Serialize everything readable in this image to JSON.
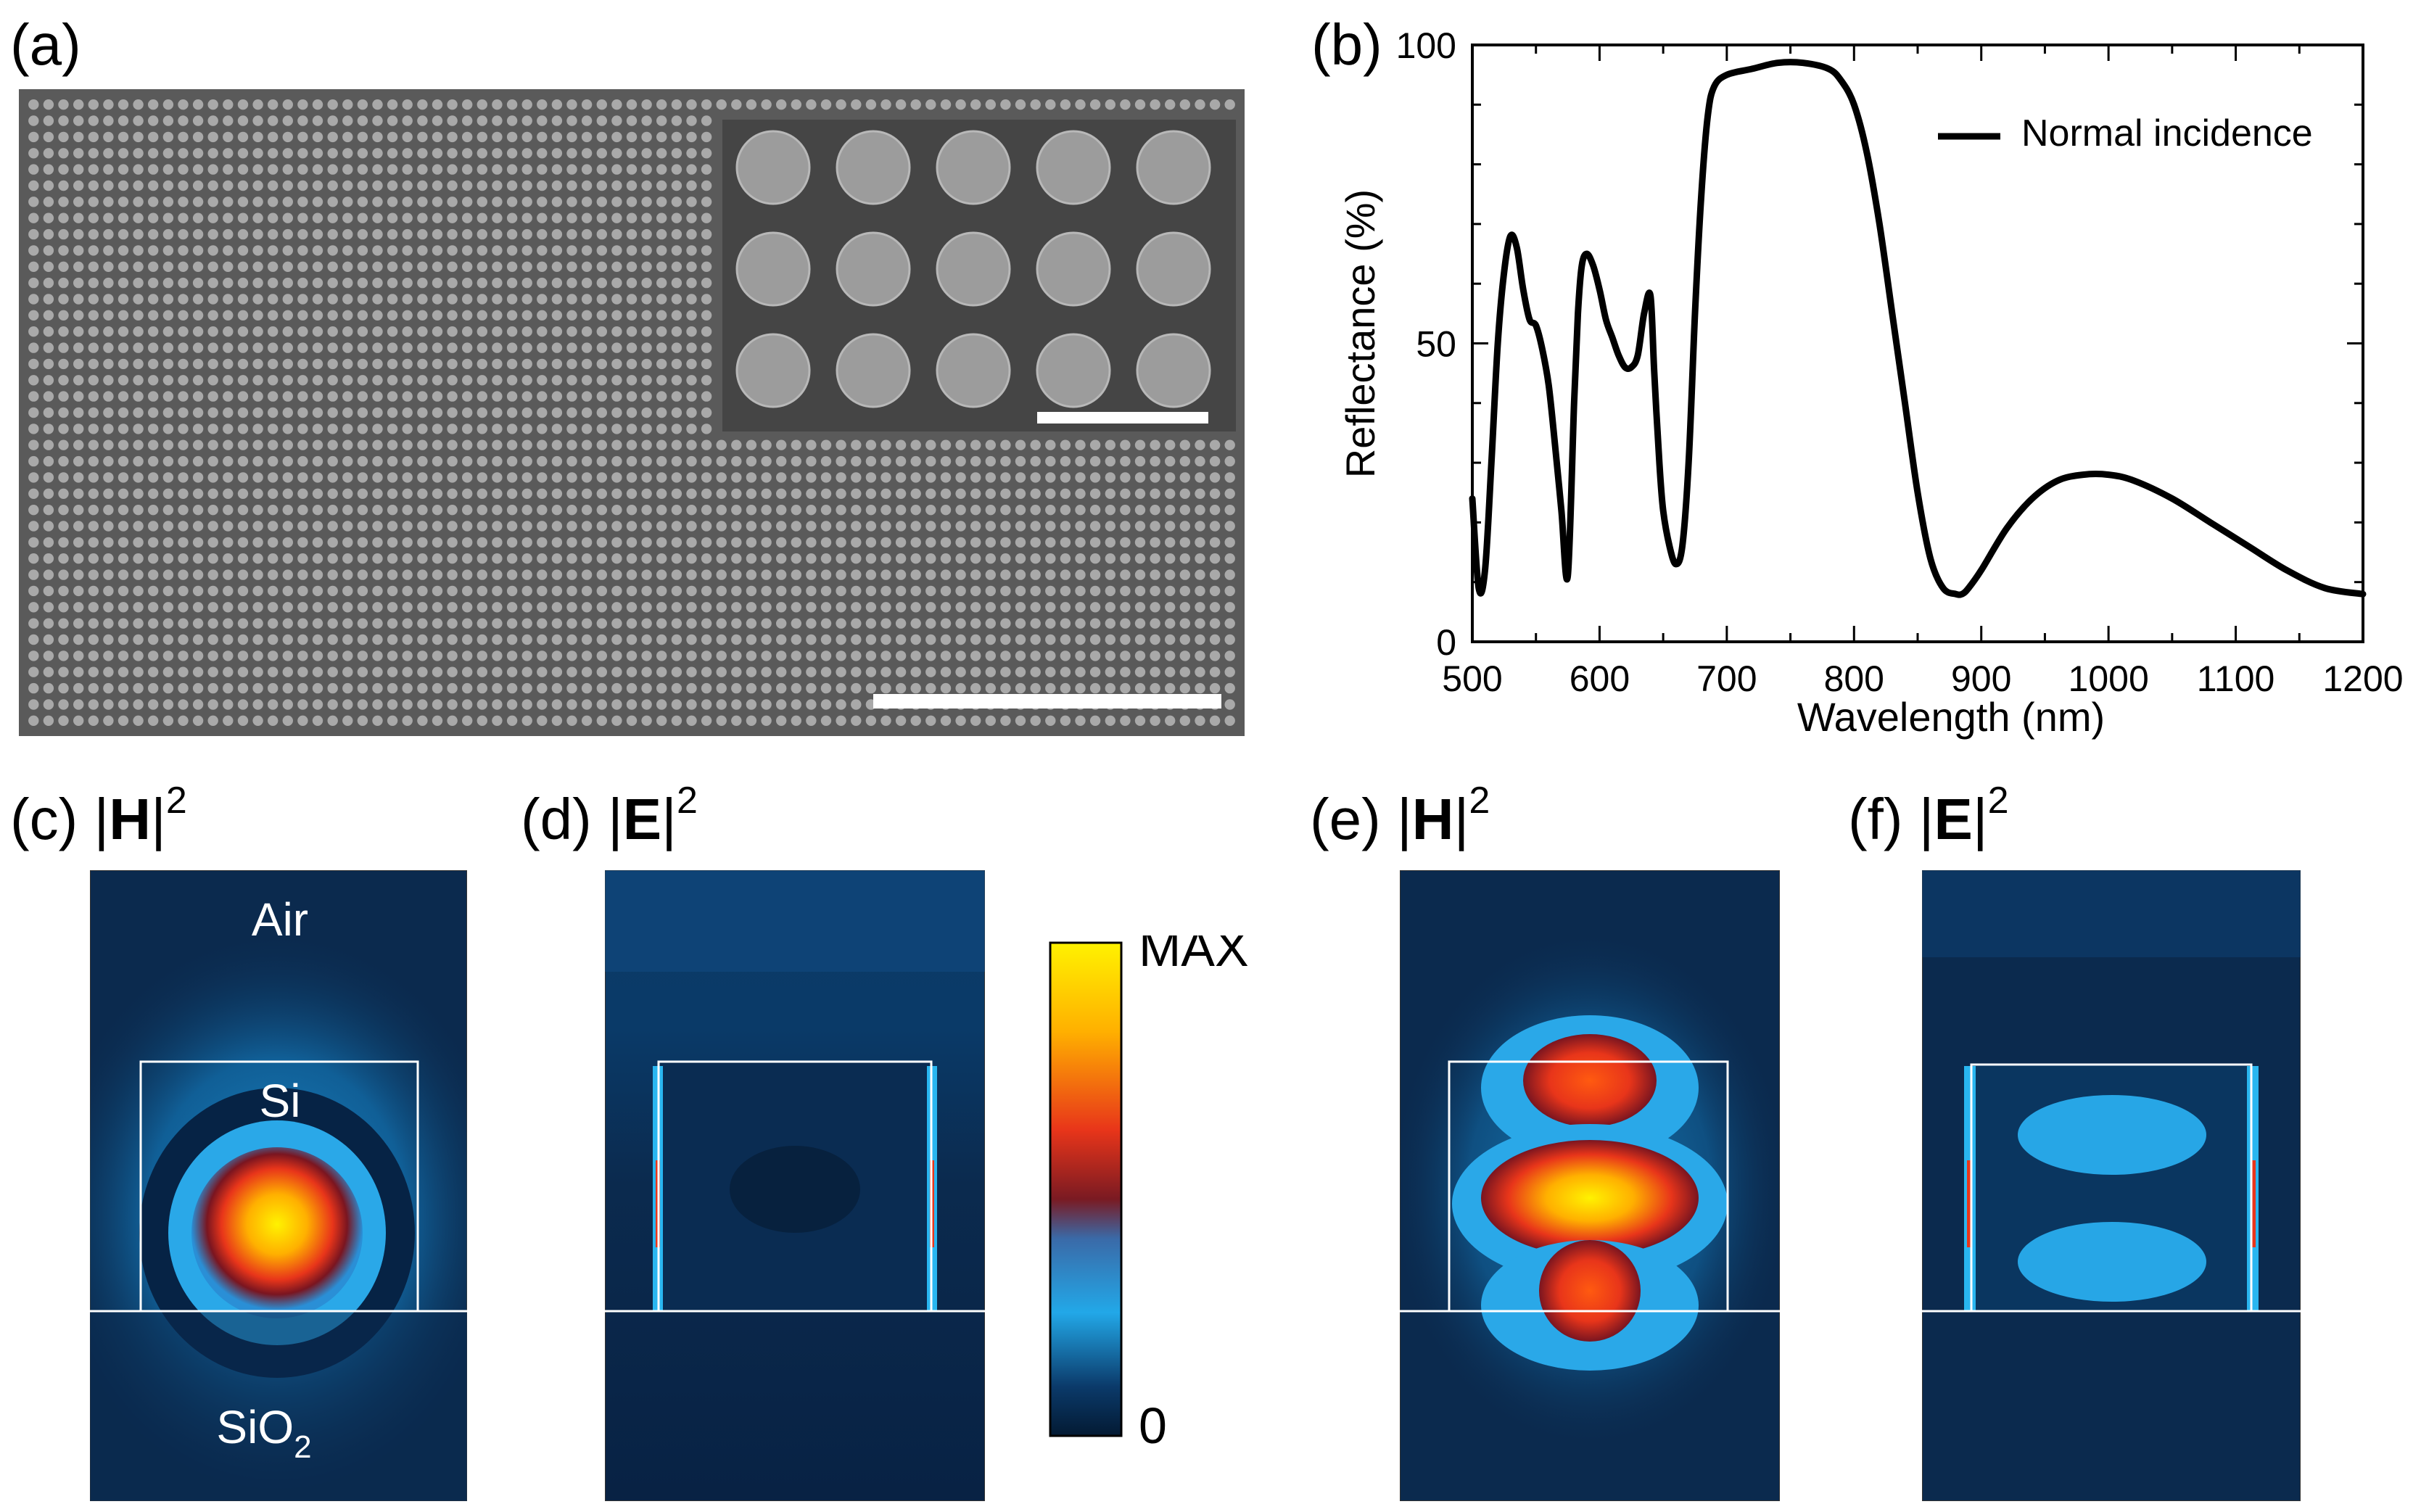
{
  "panel_labels": {
    "a": "(a)",
    "b": "(b)",
    "c": "(c)",
    "d": "(d)",
    "e": "(e)",
    "f": "(f)"
  },
  "field_labels": {
    "c": {
      "pre": "|",
      "sym": "H",
      "post": "|",
      "exp": "2"
    },
    "d": {
      "pre": "|",
      "sym": "E",
      "post": "|",
      "exp": "2"
    },
    "e": {
      "pre": "|",
      "sym": "H",
      "post": "|",
      "exp": "2"
    },
    "f": {
      "pre": "|",
      "sym": "E",
      "post": "|",
      "exp": "2"
    }
  },
  "sem": {
    "rows": 39,
    "cols": 81,
    "inset_rows": 3,
    "inset_cols": 5
  },
  "region_labels": {
    "air": "Air",
    "si": "Si",
    "sio": "SiO",
    "sio_sub": "2"
  },
  "colorbar": {
    "max_label": "MAX",
    "min_label": "0"
  },
  "colors": {
    "field_bg": "#0b2a4e",
    "hot": "#ffe600",
    "cold": "#031a33"
  },
  "chart_data": {
    "type": "line",
    "xlabel": "Wavelength (nm)",
    "ylabel": "Reflectance (%)",
    "xlim": [
      500,
      1200
    ],
    "ylim": [
      0,
      100
    ],
    "xticks": [
      "500",
      "600",
      "700",
      "800",
      "900",
      "1000",
      "1100",
      "1200"
    ],
    "yticks": [
      "0",
      "50",
      "100"
    ],
    "legend": "Normal incidence",
    "legend_position": "top-right",
    "series": [
      {
        "name": "Normal incidence",
        "x": [
          500,
          505,
          510,
          515,
          520,
          525,
          530,
          535,
          540,
          545,
          550,
          555,
          560,
          565,
          570,
          575,
          580,
          583,
          586,
          590,
          595,
          600,
          605,
          610,
          615,
          620,
          625,
          630,
          635,
          640,
          643,
          647,
          650,
          655,
          660,
          665,
          670,
          675,
          680,
          685,
          690,
          700,
          720,
          740,
          760,
          780,
          790,
          800,
          810,
          820,
          830,
          840,
          850,
          860,
          870,
          880,
          885,
          890,
          900,
          920,
          940,
          960,
          980,
          1000,
          1020,
          1050,
          1080,
          1110,
          1140,
          1170,
          1200
        ],
        "y": [
          24,
          9,
          12,
          30,
          50,
          62,
          68,
          66,
          59,
          54,
          53,
          49,
          43,
          33,
          22,
          11,
          40,
          55,
          63,
          65,
          63,
          59,
          54,
          51,
          48,
          46,
          46,
          48,
          55,
          58,
          45,
          30,
          22,
          16,
          13,
          16,
          30,
          55,
          75,
          88,
          93,
          95,
          96,
          97,
          97,
          96,
          94,
          90,
          82,
          70,
          55,
          40,
          25,
          14,
          9,
          8,
          8,
          9,
          12,
          19,
          24,
          27,
          28,
          28,
          27,
          24,
          20,
          16,
          12,
          9,
          8
        ]
      }
    ]
  }
}
